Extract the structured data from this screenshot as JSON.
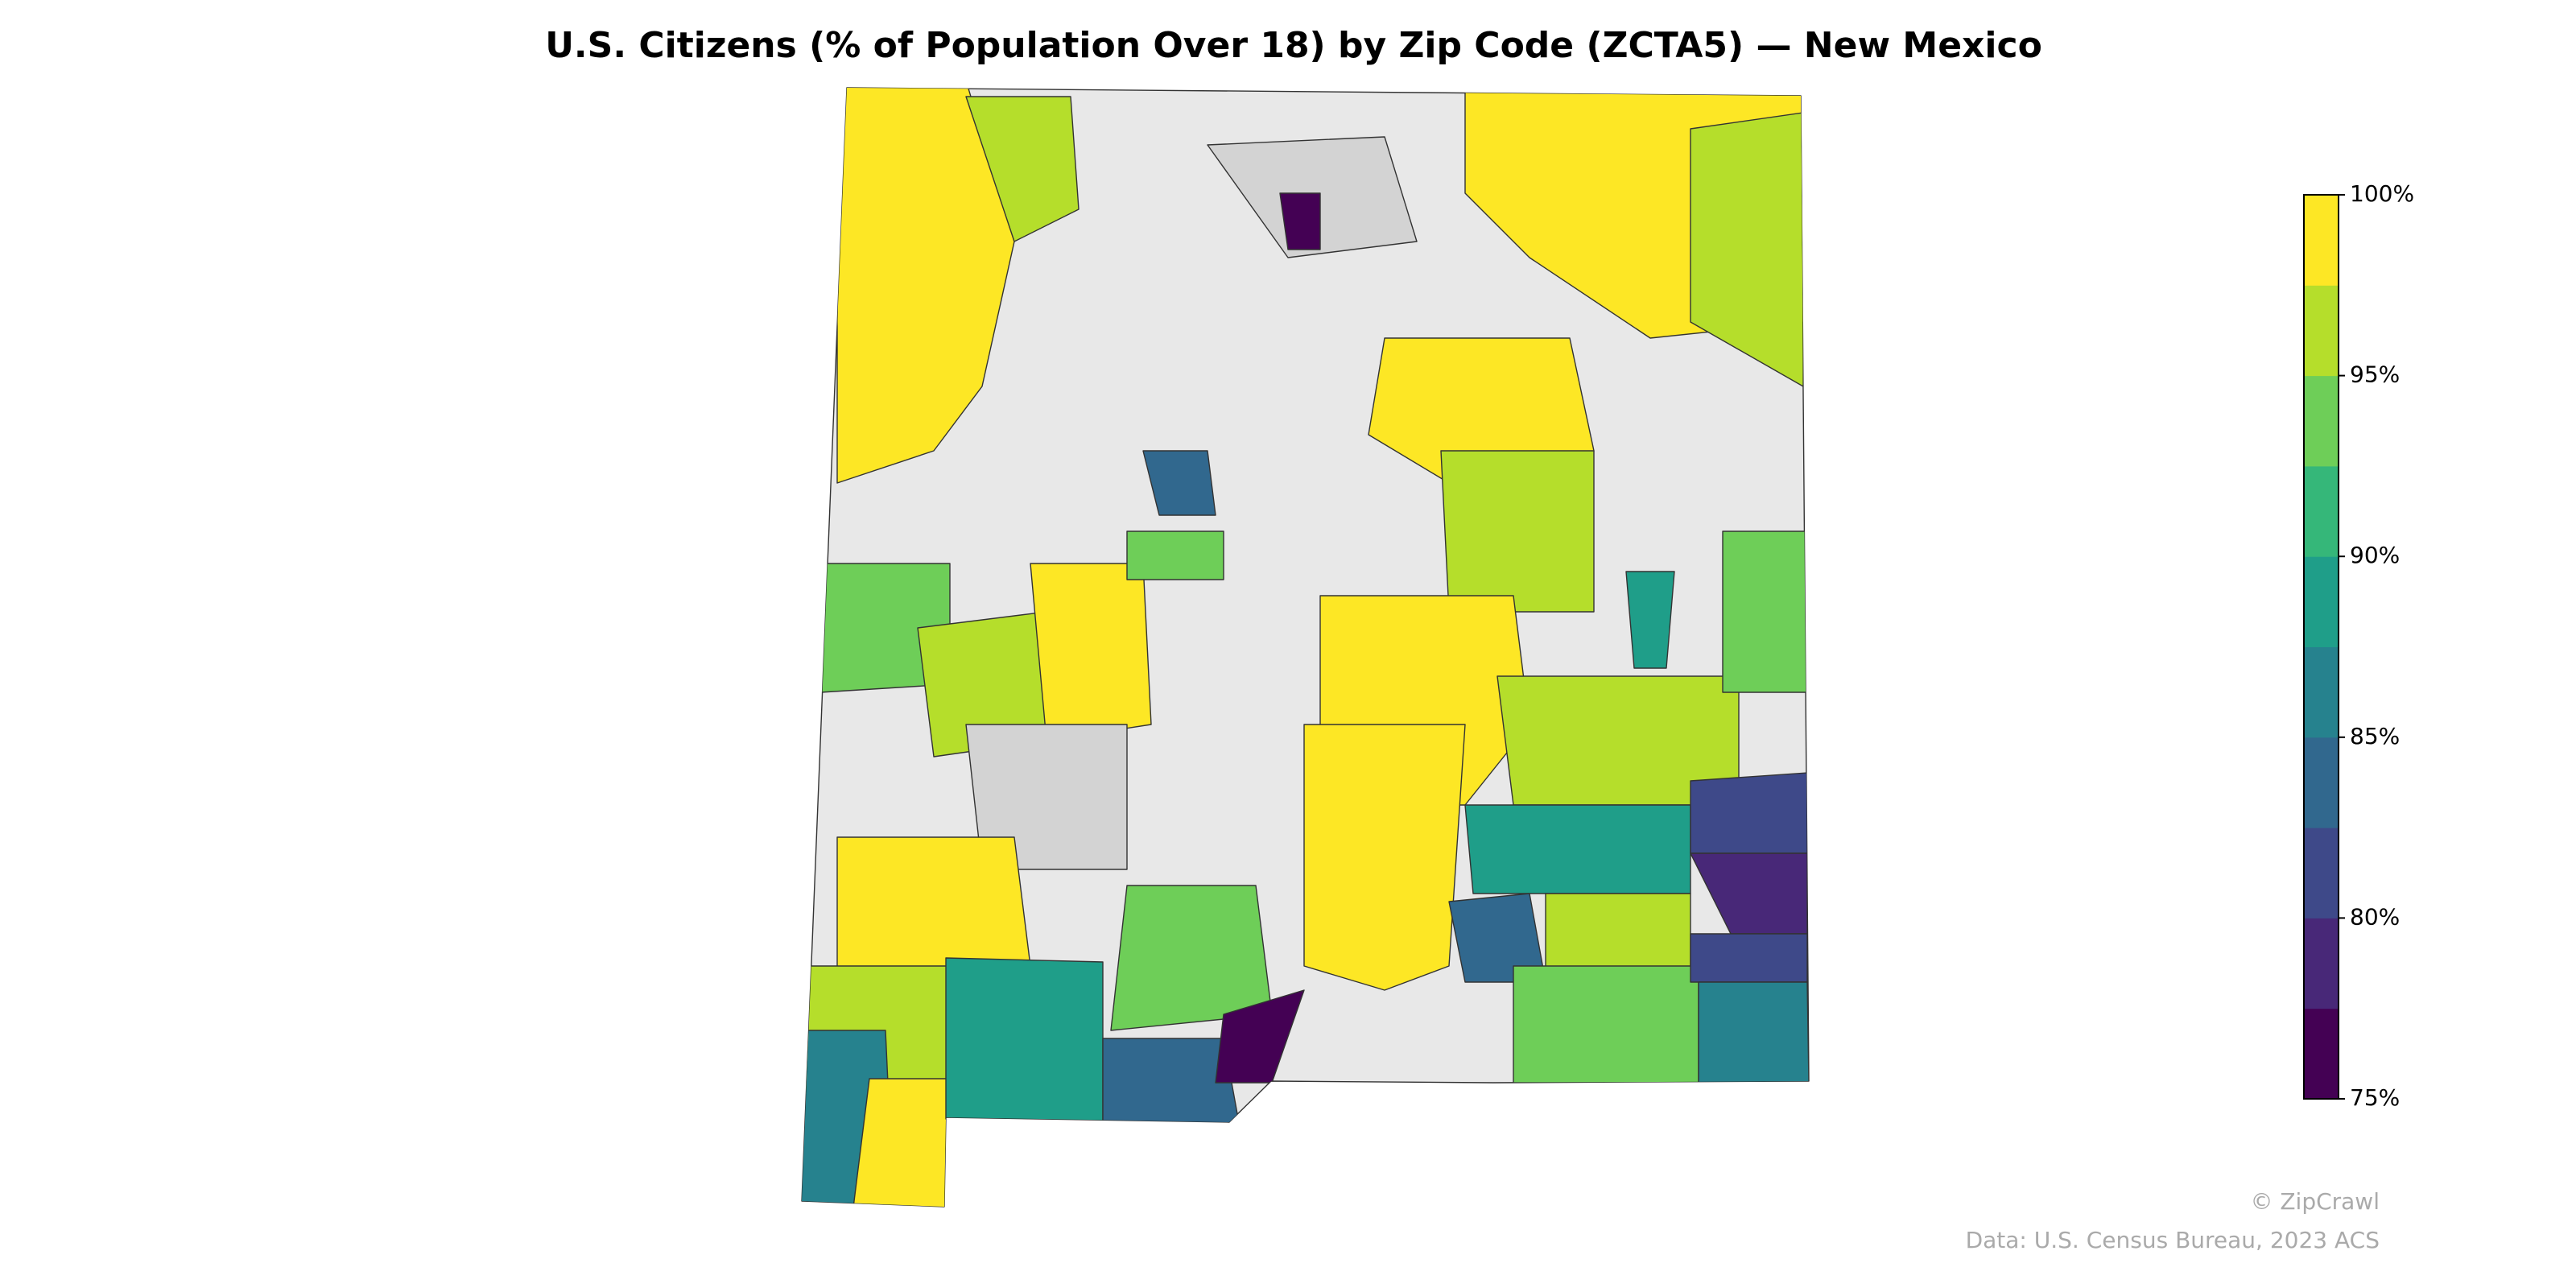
{
  "title": "U.S. Citizens (% of Population Over 18) by Zip Code (ZCTA5) — New Mexico",
  "colorbar": {
    "lim": [
      75,
      100
    ],
    "ticks": [
      {
        "value": 75,
        "label": "75%"
      },
      {
        "value": 80,
        "label": "80%"
      },
      {
        "value": 85,
        "label": "85%"
      },
      {
        "value": 90,
        "label": "90%"
      },
      {
        "value": 95,
        "label": "95%"
      },
      {
        "value": 100,
        "label": "100%"
      }
    ],
    "colors": [
      "#440154",
      "#482878",
      "#3e4989",
      "#31688e",
      "#26828e",
      "#1f9e89",
      "#35b779",
      "#6ece58",
      "#b5de2b",
      "#fde725"
    ]
  },
  "credit": "© ZipCrawl",
  "source": "Data: U.S. Census Bureau, 2023 ACS"
}
